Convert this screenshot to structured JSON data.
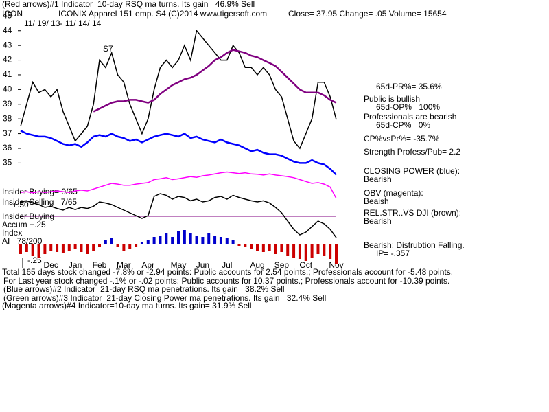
{
  "chart_data": [
    {
      "type": "line",
      "categories": [
        null,
        null,
        null,
        null,
        null,
        "Dec",
        null,
        null,
        null,
        "Jan",
        null,
        null,
        null,
        "Feb",
        null,
        null,
        null,
        "Mar",
        null,
        null,
        null,
        "Apr",
        null,
        null,
        null,
        null,
        "May",
        null,
        null,
        null,
        "Jun",
        null,
        null,
        null,
        "Jul",
        null,
        null,
        null,
        null,
        "Aug",
        null,
        null,
        null,
        "Sep",
        null,
        null,
        null,
        "Oct",
        null,
        null,
        null,
        null,
        "Nov"
      ],
      "ylim": [
        34,
        45.6
      ],
      "yticks": [
        35,
        36,
        37,
        38,
        39,
        40,
        41,
        42,
        43,
        44,
        45
      ],
      "series": [
        {
          "color": "#000000",
          "values": [
            37.5,
            39,
            40.5,
            39.8,
            40,
            39.5,
            40,
            38.5,
            37.5,
            36.5,
            37,
            37.5,
            39,
            42,
            41.5,
            42.5,
            41,
            40.5,
            39,
            38,
            37,
            38,
            40,
            41.5,
            42,
            41.5,
            42,
            43,
            42,
            44,
            43.5,
            43,
            42.5,
            42,
            42,
            43,
            42.5,
            41.5,
            41.5,
            41,
            41.5,
            41,
            40,
            39.5,
            38,
            36.5,
            36,
            37,
            38,
            40.5,
            40.5,
            39.5,
            37.95
          ]
        },
        {
          "color": "#800080",
          "values": [
            null,
            null,
            null,
            null,
            null,
            null,
            null,
            null,
            null,
            null,
            null,
            null,
            38.5,
            38.7,
            38.9,
            39.1,
            39.2,
            39.2,
            39.3,
            39.3,
            39.2,
            39.1,
            39.3,
            39.7,
            40,
            40.3,
            40.5,
            40.7,
            40.8,
            41,
            41.3,
            41.6,
            42,
            42.2,
            42.5,
            42.7,
            42.6,
            42.5,
            42.3,
            42.2,
            42,
            41.8,
            41.6,
            41.2,
            40.8,
            40.4,
            40,
            39.8,
            39.8,
            39.8,
            39.6,
            39.3,
            39.1
          ]
        },
        {
          "color": "#0000ff",
          "values": [
            37.2,
            37,
            36.9,
            36.8,
            36.8,
            36.7,
            36.5,
            36.3,
            36.2,
            36.3,
            36.1,
            36.4,
            36.8,
            36.9,
            36.8,
            37,
            36.8,
            36.7,
            36.5,
            36.6,
            36.4,
            36.6,
            36.8,
            36.9,
            37,
            36.9,
            36.8,
            37,
            36.7,
            36.8,
            36.6,
            36.5,
            36.4,
            36.6,
            36.4,
            36.3,
            36.2,
            36,
            35.8,
            35.9,
            35.7,
            35.6,
            35.6,
            35.5,
            35.3,
            35.1,
            35,
            35,
            35.2,
            35,
            34.9,
            34.6,
            34.2
          ]
        }
      ]
    },
    {
      "type": "line",
      "ylim": [
        0,
        100
      ],
      "series": [
        {
          "color": "#ff00ff",
          "values": [
            36,
            38,
            35,
            38,
            36,
            38,
            40,
            38,
            36,
            40,
            42,
            40,
            45,
            50,
            55,
            60,
            58,
            55,
            55,
            58,
            60,
            62,
            70,
            72,
            75,
            70,
            72,
            75,
            78,
            76,
            80,
            82,
            85,
            88,
            90,
            88,
            86,
            88,
            85,
            84,
            82,
            85,
            82,
            80,
            78,
            75,
            70,
            65,
            60,
            62,
            58,
            50,
            20
          ]
        }
      ]
    },
    {
      "type": "line",
      "ylim": [
        0,
        100
      ],
      "series": [
        {
          "color": "#000000",
          "values": [
            70,
            72,
            68,
            65,
            60,
            62,
            58,
            55,
            60,
            56,
            60,
            58,
            62,
            70,
            68,
            65,
            60,
            55,
            50,
            45,
            40,
            45,
            80,
            85,
            82,
            75,
            80,
            78,
            72,
            75,
            70,
            72,
            78,
            80,
            75,
            82,
            78,
            75,
            72,
            70,
            72,
            68,
            60,
            50,
            35,
            20,
            10,
            15,
            25,
            35,
            30,
            20,
            5
          ]
        }
      ]
    },
    {
      "type": "bar",
      "ylim": [
        -30,
        30
      ],
      "pos_color": "#0000cc",
      "neg_color": "#cc0000",
      "values": [
        -15,
        -12,
        -18,
        -20,
        -15,
        -10,
        -12,
        -14,
        -10,
        -8,
        -12,
        -15,
        -10,
        -5,
        5,
        8,
        -5,
        -10,
        -8,
        -5,
        3,
        5,
        10,
        12,
        15,
        10,
        18,
        20,
        15,
        12,
        10,
        15,
        12,
        10,
        8,
        5,
        -3,
        -5,
        -8,
        -10,
        -12,
        -10,
        -15,
        -12,
        -18,
        -20,
        -22,
        -25,
        -20,
        -15,
        -18,
        -22,
        -30
      ]
    }
  ],
  "header": {
    "line1": "(Red arrows)#1 Indicator=10-day RSQ ma turns. Its gain= 46.9% Sell",
    "symbol": "ICON",
    "company": "ICONIX Apparel 151 emp. S4 (C)2014 www.tigersoft.com",
    "quote": "Close=  37.95  Change= .05 Volume= 15654",
    "dates": "11/ 19/ 13- 11/ 14/ 14",
    "signal": "S7"
  },
  "left_labels": [
    "Insider Buying= 0/65",
    "Insider Selling= 7/65",
    "+.50",
    "Insider Buying",
    "Accum  +.25",
    "Index",
    "AI= 78/200",
    "-.25"
  ],
  "side": [
    "65d-PR%= 35.6%",
    "Public is bullish",
    "65d-OP%= 100%",
    "Professionals are bearish",
    "65d-CP%= 0%",
    "CP%vsPr%= -35.7%",
    "Strength Profess/Pub= 2.2",
    "CLOSING POWER (blue):",
    "Bearish",
    "OBV (magenta):",
    "Beaish",
    "REL.STR..VS DJI (brown):",
    "Bearish",
    "Bearish: Distrubtion Falling.",
    "IP= -.357"
  ],
  "footer": [
    "Total 165 days stock changed -7.8% or -2.94 points:  Public accounts for  2.54 points.;  Professionals account for -5.48 points.",
    "For Last year stock changed -.1% or -.02 points:  Public accounts for  10.37 points.;  Professionals account for -10.39 points.",
    "(Blue arrows)#2 Indicator=21-day RSQ ma penetrations. Its gain= 38.2% Sell",
    "(Green arrows)#3 Indicator=21-day Closing Power ma penetrations. Its gain= 32.4% Sell",
    "(Magenta arrows)#4 Indicator=10-day ma turns. Its gain= 31.9% Sell"
  ]
}
